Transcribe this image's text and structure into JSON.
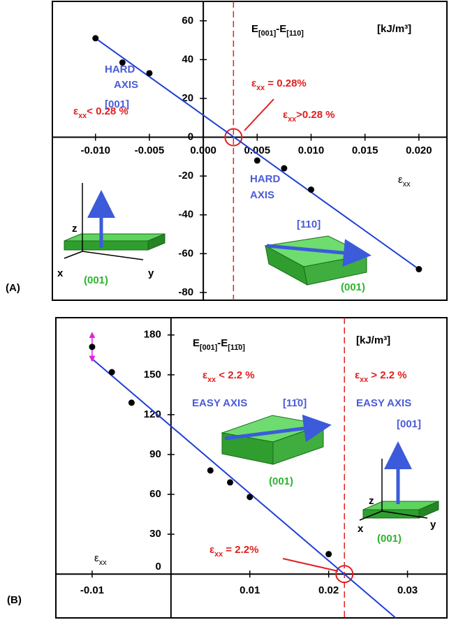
{
  "chart_data": [
    {
      "type": "scatter",
      "label": "(A)",
      "title": "E[001]-E[110]",
      "units": "[kJ/m³]",
      "x_label": "εxx",
      "x": [
        -0.01,
        -0.0075,
        -0.005,
        0.005,
        0.0075,
        0.01,
        0.02
      ],
      "series": [
        {
          "color": "#000000",
          "values": [
            51,
            38.5,
            33,
            -12,
            -16,
            -27,
            -68
          ]
        }
      ],
      "fit": {
        "color": "#1f3fd6",
        "x": [
          -0.01,
          0.02
        ],
        "values": [
          51,
          -68
        ]
      },
      "crossing": 0.0028,
      "xlim": [
        -0.014,
        0.0226
      ],
      "ylim": [
        -84,
        70
      ],
      "xticks": [
        {
          "value": -0.01,
          "label": "-0.010"
        },
        -0.005,
        {
          "value": 0,
          "label": "0.000"
        },
        0.005,
        {
          "value": 0.01,
          "label": "0.010"
        },
        0.015,
        {
          "value": 0.02,
          "label": "0.020"
        }
      ],
      "yticks": [
        60,
        40,
        20,
        0,
        -20,
        -40,
        -60,
        -80
      ],
      "annotations": [
        "εxx< 0.28 %",
        "εxx = 0.28%",
        "εxx>0.28 %",
        "HARD",
        "AXIS",
        "[001]",
        "z",
        "x",
        "y",
        "(001)",
        "HARD",
        "AXIS",
        "[110]",
        "(001)"
      ]
    },
    {
      "type": "scatter",
      "label": "(B)",
      "title": "E[001]-E[11̄0]",
      "units": "[kJ/m³]",
      "x_label": "εxx",
      "x": [
        -0.01,
        -0.0075,
        -0.005,
        0.005,
        0.0075,
        0.01,
        0.02
      ],
      "series": [
        {
          "color": "#000000",
          "values": [
            171,
            152,
            129,
            78,
            69,
            58,
            15
          ],
          "errors": [
            9,
            null,
            null,
            null,
            null,
            null,
            null
          ]
        }
      ],
      "fit": {
        "color": "#1f3fd6",
        "x": [
          -0.01,
          0.0285
        ],
        "values": [
          162,
          -33
        ]
      },
      "crossing": 0.022,
      "xlim": [
        -0.0146,
        0.035
      ],
      "ylim": [
        -33,
        193
      ],
      "xticks": [
        -0.01,
        0.01,
        0.02,
        0.03
      ],
      "yticks": [
        0,
        30,
        60,
        90,
        120,
        150,
        180
      ],
      "annotations": [
        "εxx < 2.2 %",
        "EASY AXIS",
        "[11̄0]",
        "(001)",
        "εxx > 2.2 %",
        "EASY AXIS",
        "[001]",
        "z",
        "x",
        "y",
        "(001)",
        "εxx = 2.2%"
      ]
    }
  ]
}
